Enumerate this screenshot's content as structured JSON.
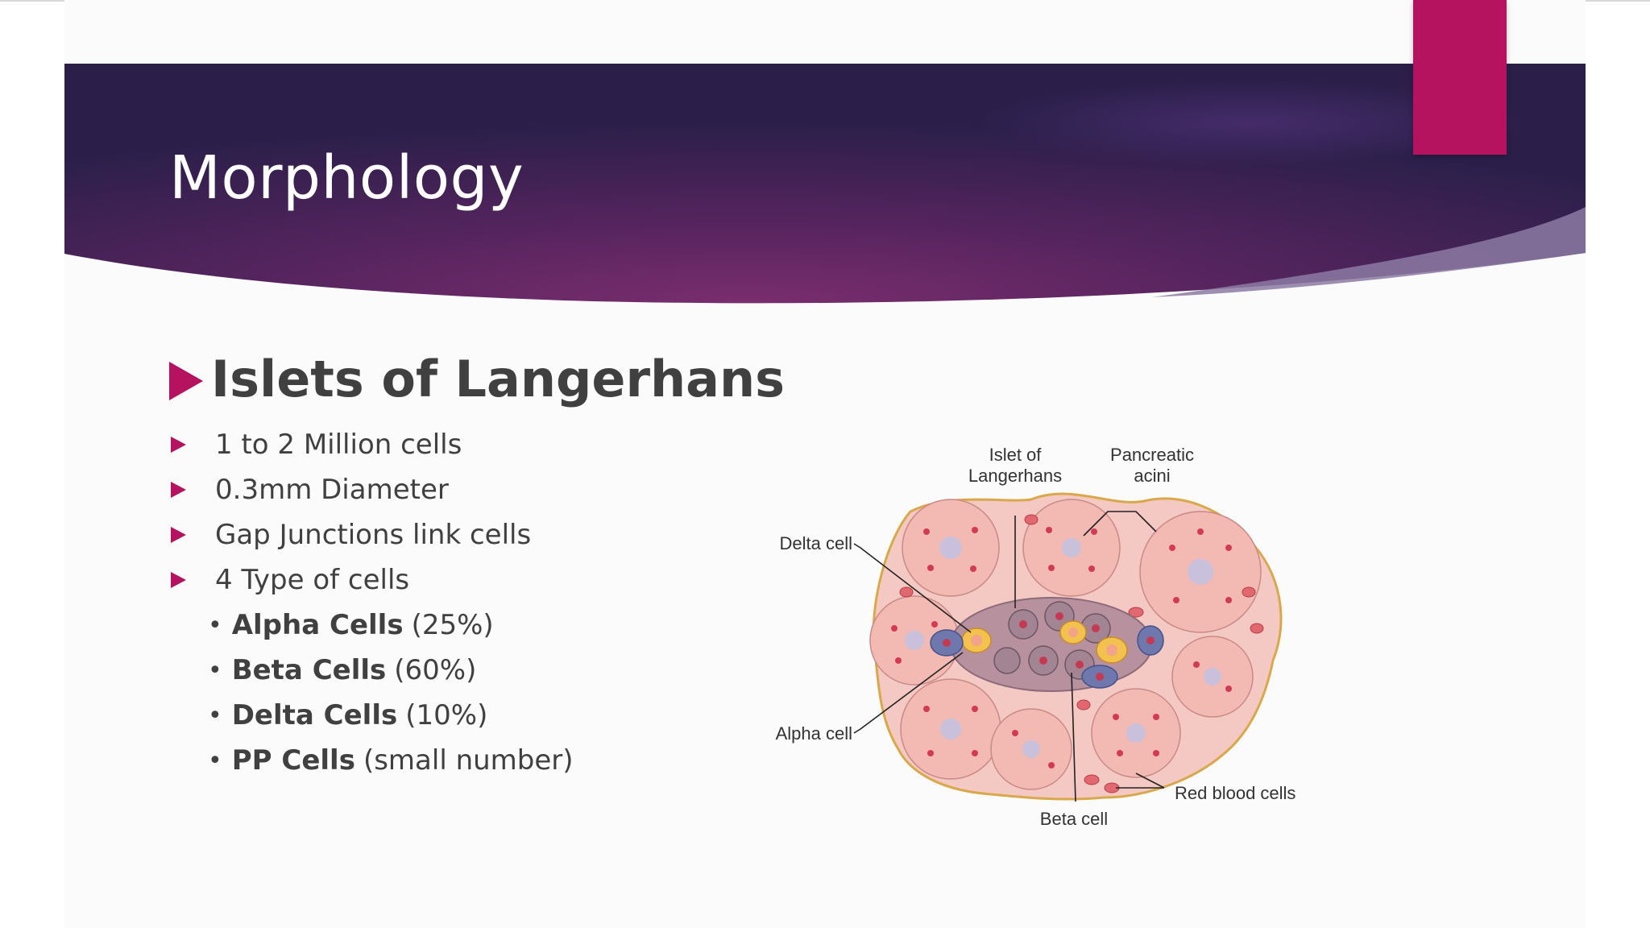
{
  "slide": {
    "title": "Morphology",
    "heading": "Islets of Langerhans",
    "bullets": [
      "1 to 2 Million cells",
      "0.3mm Diameter",
      "Gap Junctions link cells",
      "4 Type of cells"
    ],
    "cell_types": [
      {
        "name": "Alpha Cells",
        "detail": "(25%)"
      },
      {
        "name": "Beta Cells",
        "detail": "(60%)"
      },
      {
        "name": "Delta Cells",
        "detail": "(10%)"
      },
      {
        "name": "PP Cells",
        "detail": "(small number)"
      }
    ]
  },
  "diagram": {
    "labels": {
      "islet_line1": "Islet of",
      "islet_line2": "Langerhans",
      "acini_line1": "Pancreatic",
      "acini_line2": "acini",
      "delta": "Delta cell",
      "alpha": "Alpha cell",
      "beta": "Beta cell",
      "rbc": "Red blood cells"
    }
  },
  "colors": {
    "banner_dark": "#2b1f4a",
    "banner_mid": "#6a2a63",
    "accent": "#b5135f",
    "text": "#404040"
  }
}
